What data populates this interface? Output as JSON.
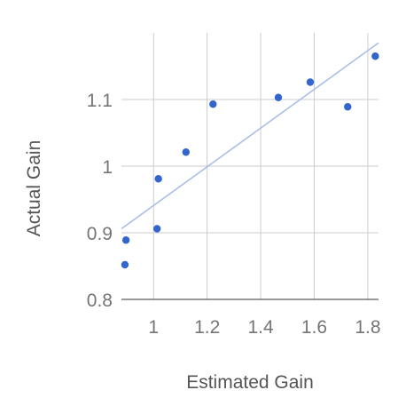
{
  "chart_data": {
    "type": "scatter",
    "title": "",
    "xlabel": "Estimated Gain",
    "ylabel": "Actual Gain",
    "xlim": [
      0.88,
      1.84
    ],
    "ylim": [
      0.8,
      1.2
    ],
    "x_ticks": [
      1,
      1.2,
      1.4,
      1.6,
      1.8
    ],
    "x_tick_labels": [
      "1",
      "1.2",
      "1.4",
      "1.6",
      "1.8"
    ],
    "y_ticks": [
      0.8,
      0.9,
      1,
      1.1
    ],
    "y_tick_labels": [
      "0.8",
      "0.9",
      "1",
      "1.1"
    ],
    "grid": true,
    "legend": "none",
    "points": [
      {
        "x": 0.893,
        "y": 0.852
      },
      {
        "x": 0.897,
        "y": 0.889
      },
      {
        "x": 1.013,
        "y": 0.906
      },
      {
        "x": 1.018,
        "y": 0.981
      },
      {
        "x": 1.121,
        "y": 1.021
      },
      {
        "x": 1.222,
        "y": 1.093
      },
      {
        "x": 1.466,
        "y": 1.103
      },
      {
        "x": 1.585,
        "y": 1.126
      },
      {
        "x": 1.725,
        "y": 1.089
      },
      {
        "x": 1.828,
        "y": 1.165
      }
    ],
    "trendline": {
      "type": "linear",
      "x": [
        0.88,
        1.84
      ],
      "y": [
        0.906,
        1.185
      ]
    },
    "colors": {
      "points": "#3366cc",
      "trendline": "#a8c0e6",
      "grid": "#cccccc",
      "axis": "#333333"
    }
  }
}
